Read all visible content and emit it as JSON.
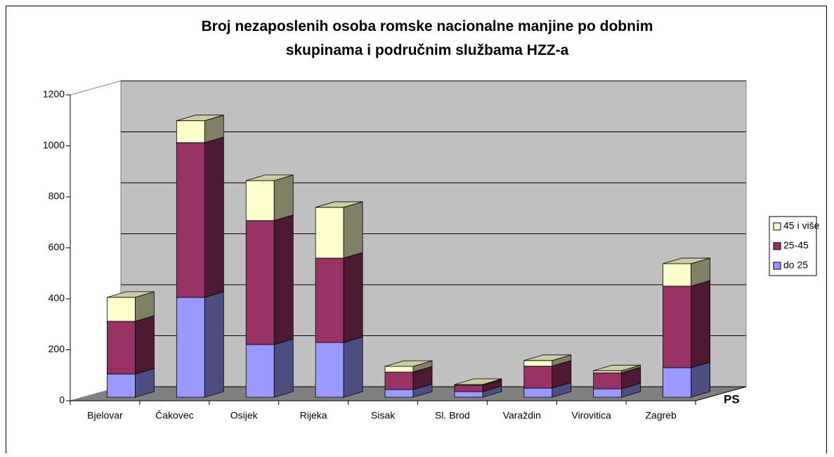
{
  "chart_data": {
    "type": "bar3d_stacked",
    "title": "Broj nezaposlenih osoba romske nacionalne manjine po dobnim skupinama i područnim službama HZZ-a",
    "categories": [
      "Bjelovar",
      "Čakovec",
      "Osijek",
      "Rijeka",
      "Sisak",
      "Sl. Brod",
      "Varaždin",
      "Virovitica",
      "Zagreb"
    ],
    "series": [
      {
        "name": "do 25",
        "color": "#9999ff",
        "values": [
          91,
          392,
          207,
          215,
          30,
          22,
          36,
          33,
          116
        ]
      },
      {
        "name": "25-45",
        "color": "#993366",
        "values": [
          207,
          607,
          486,
          331,
          69,
          25,
          86,
          63,
          320
        ]
      },
      {
        "name": "45 i više",
        "color": "#ffffcc",
        "values": [
          94,
          86,
          157,
          199,
          22,
          3,
          22,
          8,
          88
        ]
      }
    ],
    "xlabel": "PS",
    "ylim": [
      0,
      1200
    ],
    "yticks": [
      0,
      200,
      400,
      600,
      800,
      1000,
      1200
    ],
    "grid": true,
    "legend": "right"
  }
}
